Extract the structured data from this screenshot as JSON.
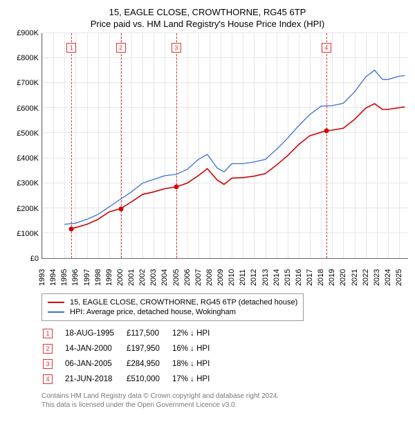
{
  "title": "15, EAGLE CLOSE, CROWTHORNE, RG45 6TP",
  "subtitle": "Price paid vs. HM Land Registry's House Price Index (HPI)",
  "chart": {
    "type": "line",
    "background_color": "#ffffff",
    "grid_color": "#e6e6e6",
    "axis_color": "#666666",
    "title_fontsize": 13,
    "label_fontsize": 11,
    "x": {
      "min": 1993,
      "max": 2025.8,
      "ticks": [
        1993,
        1994,
        1995,
        1996,
        1997,
        1998,
        1999,
        2000,
        2001,
        2002,
        2003,
        2004,
        2005,
        2006,
        2007,
        2008,
        2009,
        2010,
        2011,
        2012,
        2013,
        2014,
        2015,
        2016,
        2017,
        2018,
        2019,
        2020,
        2021,
        2022,
        2023,
        2024,
        2025
      ]
    },
    "y": {
      "min": 0,
      "max": 900000,
      "ticks": [
        0,
        100000,
        200000,
        300000,
        400000,
        500000,
        600000,
        700000,
        800000,
        900000
      ],
      "tick_labels": [
        "£0",
        "£100K",
        "£200K",
        "£300K",
        "£400K",
        "£500K",
        "£600K",
        "£700K",
        "£800K",
        "£900K"
      ]
    },
    "series": [
      {
        "name": "15, EAGLE CLOSE, CROWTHORNE, RG45 6TP (detached house)",
        "color": "#d40000",
        "line_width": 1.6,
        "points": [
          [
            1995.6,
            117500
          ],
          [
            1996,
            122000
          ],
          [
            1997,
            135000
          ],
          [
            1998,
            155000
          ],
          [
            1999,
            185000
          ],
          [
            2000.04,
            197950
          ],
          [
            2001,
            225000
          ],
          [
            2002,
            255000
          ],
          [
            2003,
            265000
          ],
          [
            2004,
            278000
          ],
          [
            2005.02,
            284950
          ],
          [
            2006,
            300000
          ],
          [
            2007,
            330000
          ],
          [
            2007.8,
            358000
          ],
          [
            2008.7,
            312000
          ],
          [
            2009.3,
            295000
          ],
          [
            2010,
            320000
          ],
          [
            2011,
            322000
          ],
          [
            2012,
            328000
          ],
          [
            2013,
            338000
          ],
          [
            2014,
            372000
          ],
          [
            2015,
            410000
          ],
          [
            2016,
            455000
          ],
          [
            2017,
            490000
          ],
          [
            2018.47,
            510000
          ],
          [
            2019,
            512000
          ],
          [
            2020,
            520000
          ],
          [
            2021,
            555000
          ],
          [
            2022,
            600000
          ],
          [
            2022.8,
            618000
          ],
          [
            2023.5,
            595000
          ],
          [
            2024,
            595000
          ],
          [
            2025,
            602000
          ],
          [
            2025.5,
            605000
          ]
        ]
      },
      {
        "name": "HPI: Average price, detached house, Wokingham",
        "color": "#3b6fd6",
        "line_width": 1.3,
        "points": [
          [
            1995.0,
            135000
          ],
          [
            1996,
            140000
          ],
          [
            1997,
            155000
          ],
          [
            1998,
            175000
          ],
          [
            1999,
            205000
          ],
          [
            2000,
            235000
          ],
          [
            2001,
            265000
          ],
          [
            2002,
            300000
          ],
          [
            2003,
            315000
          ],
          [
            2004,
            330000
          ],
          [
            2005,
            335000
          ],
          [
            2006,
            355000
          ],
          [
            2007,
            395000
          ],
          [
            2007.8,
            415000
          ],
          [
            2008.7,
            360000
          ],
          [
            2009.3,
            345000
          ],
          [
            2010,
            378000
          ],
          [
            2011,
            378000
          ],
          [
            2012,
            385000
          ],
          [
            2013,
            395000
          ],
          [
            2014,
            435000
          ],
          [
            2015,
            480000
          ],
          [
            2016,
            530000
          ],
          [
            2017,
            575000
          ],
          [
            2018,
            608000
          ],
          [
            2019,
            610000
          ],
          [
            2020,
            620000
          ],
          [
            2021,
            665000
          ],
          [
            2022,
            725000
          ],
          [
            2022.8,
            752000
          ],
          [
            2023.5,
            715000
          ],
          [
            2024,
            715000
          ],
          [
            2025,
            728000
          ],
          [
            2025.5,
            730000
          ]
        ]
      }
    ],
    "markers": [
      {
        "n": "1",
        "x": 1995.63,
        "y": 117500,
        "color": "#d40000"
      },
      {
        "n": "2",
        "x": 2000.04,
        "y": 197950,
        "color": "#d40000"
      },
      {
        "n": "3",
        "x": 2005.02,
        "y": 284950,
        "color": "#d40000"
      },
      {
        "n": "4",
        "x": 2018.47,
        "y": 510000,
        "color": "#d40000"
      }
    ]
  },
  "legend": {
    "items": [
      {
        "color": "#d40000",
        "label": "15, EAGLE CLOSE, CROWTHORNE, RG45 6TP (detached house)"
      },
      {
        "color": "#3b6fd6",
        "label": "HPI: Average price, detached house, Wokingham"
      }
    ]
  },
  "transactions": [
    {
      "n": "1",
      "date": "18-AUG-1995",
      "price": "£117,500",
      "diff": "12% ↓ HPI"
    },
    {
      "n": "2",
      "date": "14-JAN-2000",
      "price": "£197,950",
      "diff": "16% ↓ HPI"
    },
    {
      "n": "3",
      "date": "06-JAN-2005",
      "price": "£284,950",
      "diff": "18% ↓ HPI"
    },
    {
      "n": "4",
      "date": "21-JUN-2018",
      "price": "£510,000",
      "diff": "17% ↓ HPI"
    }
  ],
  "footer": {
    "line1": "Contains HM Land Registry data © Crown copyright and database right 2024.",
    "line2": "This data is licensed under the Open Government Licence v3.0."
  }
}
